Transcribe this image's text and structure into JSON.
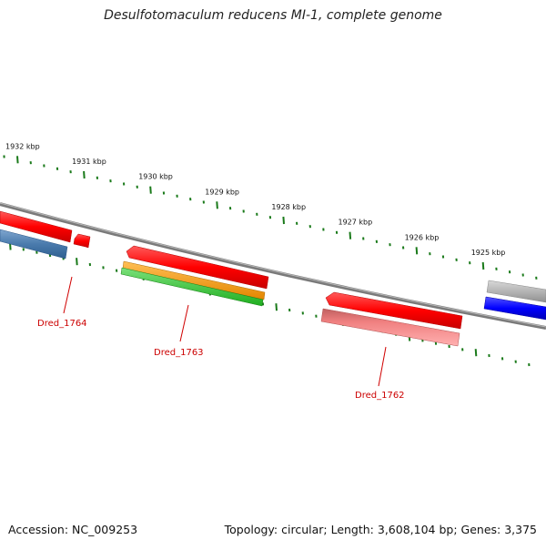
{
  "title": "Desulfotomaculum reducens MI-1, complete genome",
  "footer": {
    "accession": "Accession: NC_009253",
    "summary": "Topology: circular; Length: 3,608,104 bp; Genes: 3,375"
  },
  "ruler": {
    "labels": [
      "1932 kbp",
      "1931 kbp",
      "1930 kbp",
      "1929 kbp",
      "1928 kbp",
      "1927 kbp",
      "1926 kbp",
      "1925 kbp"
    ]
  },
  "genes": [
    {
      "label": "Dred_1764"
    },
    {
      "label": "Dred_1763"
    },
    {
      "label": "Dred_1762"
    }
  ],
  "colors": {
    "backbone": "#808080",
    "tick": "#1a7a1a",
    "gene_red": "#ff0000",
    "gene_blue_steel": "#4f80b0",
    "gene_blue": "#0000ff",
    "gene_orange": "#ff9900",
    "gene_green": "#33cc33",
    "gene_pink": "#f08080",
    "gene_gray": "#b0b0b0",
    "label_red": "#cc0000"
  }
}
